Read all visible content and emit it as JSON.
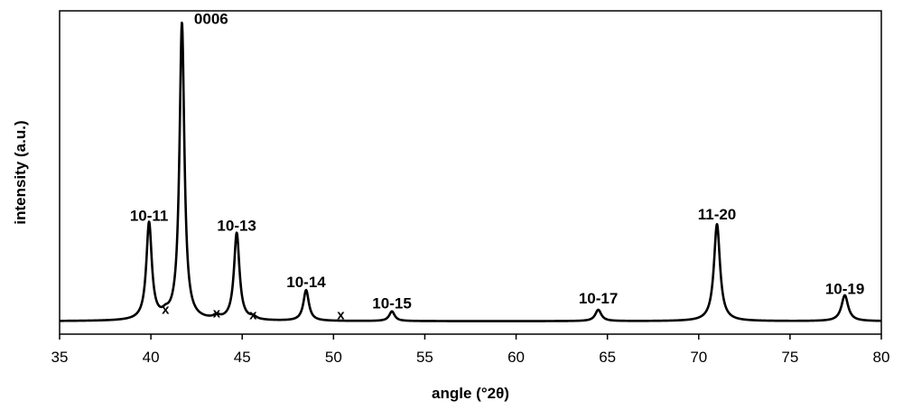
{
  "chart_data": {
    "type": "line",
    "xlabel": "angle (°2θ)",
    "ylabel": "intensity (a.u.)",
    "xlim": [
      35,
      80
    ],
    "ylim": [
      0,
      100
    ],
    "x_ticks": [
      35,
      40,
      45,
      50,
      55,
      60,
      65,
      70,
      75,
      80
    ],
    "y_ticks": [],
    "grid": false,
    "baseline": 4,
    "series": [
      {
        "peaks": [
          {
            "x": 39.9,
            "height": 30,
            "width": 0.18
          },
          {
            "x": 41.7,
            "height": 92,
            "width": 0.16
          },
          {
            "x": 44.7,
            "height": 27,
            "width": 0.18
          },
          {
            "x": 48.5,
            "height": 9.5,
            "width": 0.18
          },
          {
            "x": 53.2,
            "height": 3,
            "width": 0.18
          },
          {
            "x": 64.5,
            "height": 3.5,
            "width": 0.2
          },
          {
            "x": 71.0,
            "height": 30,
            "width": 0.2
          },
          {
            "x": 78.0,
            "height": 8,
            "width": 0.22
          },
          {
            "x": 40.8,
            "height": 1.2,
            "width": 0.2
          },
          {
            "x": 43.6,
            "height": 1.0,
            "width": 0.2
          },
          {
            "x": 45.6,
            "height": 0.8,
            "width": 0.2
          }
        ]
      }
    ],
    "peak_labels": [
      {
        "text": "10-11",
        "x": 39.9,
        "y": 35
      },
      {
        "text": "0006",
        "x": 43.3,
        "y": 96
      },
      {
        "text": "10-13",
        "x": 44.7,
        "y": 32
      },
      {
        "text": "10-14",
        "x": 48.5,
        "y": 14.5
      },
      {
        "text": "10-15",
        "x": 53.2,
        "y": 8
      },
      {
        "text": "10-17",
        "x": 64.5,
        "y": 9.5
      },
      {
        "text": "11-20",
        "x": 71.0,
        "y": 35.5
      },
      {
        "text": "10-19",
        "x": 78.0,
        "y": 12.5
      }
    ],
    "impurity_markers": [
      {
        "text": "x",
        "x": 40.8,
        "y": 6.3
      },
      {
        "text": "x",
        "x": 43.6,
        "y": 5.2
      },
      {
        "text": "x",
        "x": 45.6,
        "y": 4.6
      },
      {
        "text": "x",
        "x": 50.4,
        "y": 4.6
      }
    ]
  }
}
